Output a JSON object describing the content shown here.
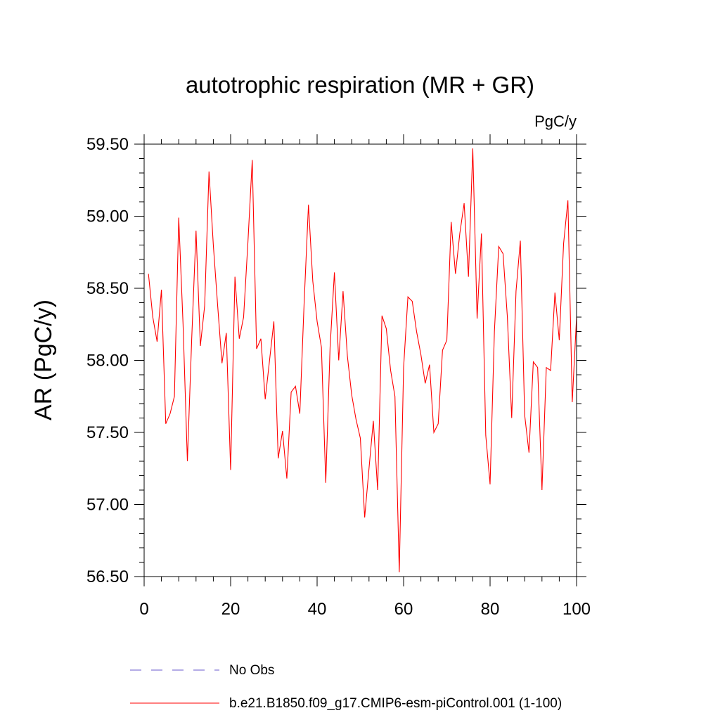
{
  "chart_data": {
    "type": "line",
    "title": "autotrophic respiration (MR + GR)",
    "units": "PgC/y",
    "ylabel": "AR  (PgC/y)",
    "xlabel": "",
    "xlim": [
      0,
      100
    ],
    "ylim": [
      56.5,
      59.5
    ],
    "xticks": [
      0,
      20,
      40,
      60,
      80,
      100
    ],
    "xtick_labels": [
      "0",
      "20",
      "40",
      "60",
      "80",
      "100"
    ],
    "yticks": [
      56.5,
      57.0,
      57.5,
      58.0,
      58.5,
      59.0,
      59.5
    ],
    "ytick_labels": [
      "56.50",
      "57.00",
      "57.50",
      "58.00",
      "58.50",
      "59.00",
      "59.50"
    ],
    "grid": false,
    "legend_position": "bottom",
    "series": [
      {
        "name": "No Obs",
        "color": "#6a5acd",
        "style": "dashed",
        "x": [],
        "values": []
      },
      {
        "name": "b.e21.B1850.f09_g17.CMIP6-esm-piControl.001 (1-100)",
        "color": "#ff0000",
        "style": "solid",
        "x": [
          1,
          2,
          3,
          4,
          5,
          6,
          7,
          8,
          9,
          10,
          11,
          12,
          13,
          14,
          15,
          16,
          17,
          18,
          19,
          20,
          21,
          22,
          23,
          24,
          25,
          26,
          27,
          28,
          29,
          30,
          31,
          32,
          33,
          34,
          35,
          36,
          37,
          38,
          39,
          40,
          41,
          42,
          43,
          44,
          45,
          46,
          47,
          48,
          49,
          50,
          51,
          52,
          53,
          54,
          55,
          56,
          57,
          58,
          59,
          60,
          61,
          62,
          63,
          64,
          65,
          66,
          67,
          68,
          69,
          70,
          71,
          72,
          73,
          74,
          75,
          76,
          77,
          78,
          79,
          80,
          81,
          82,
          83,
          84,
          85,
          86,
          87,
          88,
          89,
          90,
          91,
          92,
          93,
          94,
          95,
          96,
          97,
          98,
          99,
          100
        ],
        "values": [
          58.6,
          58.3,
          58.13,
          58.49,
          57.56,
          57.63,
          57.75,
          58.99,
          58.25,
          57.3,
          58.15,
          58.9,
          58.1,
          58.38,
          59.31,
          58.8,
          58.38,
          57.98,
          58.19,
          57.24,
          58.58,
          58.15,
          58.3,
          58.82,
          59.39,
          58.08,
          58.15,
          57.73,
          58.0,
          58.27,
          57.32,
          57.51,
          57.18,
          57.78,
          57.82,
          57.63,
          58.4,
          59.08,
          58.55,
          58.27,
          58.09,
          57.15,
          58.09,
          58.61,
          58.0,
          58.48,
          58.03,
          57.76,
          57.59,
          57.46,
          56.91,
          57.25,
          57.58,
          57.1,
          58.31,
          58.22,
          57.93,
          57.75,
          56.53,
          57.95,
          58.44,
          58.41,
          58.2,
          58.04,
          57.84,
          57.97,
          57.5,
          57.56,
          58.07,
          58.14,
          58.96,
          58.6,
          58.88,
          59.09,
          58.58,
          59.47,
          58.29,
          58.88,
          57.48,
          57.14,
          58.2,
          58.79,
          58.74,
          58.3,
          57.6,
          58.48,
          58.83,
          57.62,
          57.36,
          57.99,
          57.95,
          57.1,
          57.95,
          57.93,
          58.47,
          58.14,
          58.81,
          59.11,
          57.71,
          58.3
        ]
      }
    ]
  }
}
